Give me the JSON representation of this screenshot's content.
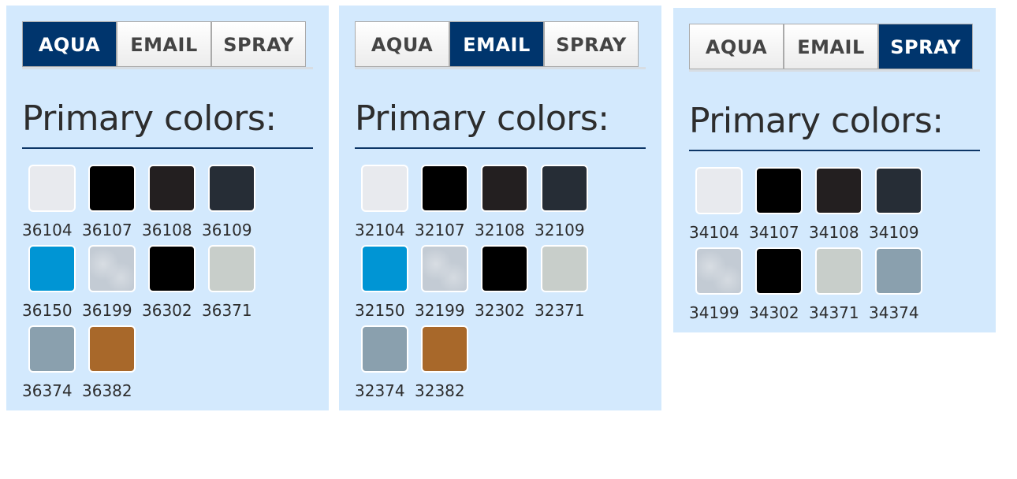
{
  "tabs": [
    "AQUA",
    "EMAIL",
    "SPRAY"
  ],
  "heading": "Primary colors:",
  "panels": [
    {
      "active_tab": "AQUA",
      "swatches": [
        {
          "code": "36104",
          "color": "#e8eaee"
        },
        {
          "code": "36107",
          "color": "#000000"
        },
        {
          "code": "36108",
          "color": "#231f20"
        },
        {
          "code": "36109",
          "color": "#262d36"
        },
        {
          "code": "36150",
          "color": "#0095d4"
        },
        {
          "code": "36199",
          "color": "#c3cbd4"
        },
        {
          "code": "36302",
          "color": "#000000"
        },
        {
          "code": "36371",
          "color": "#c8ceca"
        },
        {
          "code": "36374",
          "color": "#8aa0ae"
        },
        {
          "code": "36382",
          "color": "#a8682a"
        }
      ]
    },
    {
      "active_tab": "EMAIL",
      "swatches": [
        {
          "code": "32104",
          "color": "#e8eaee"
        },
        {
          "code": "32107",
          "color": "#000000"
        },
        {
          "code": "32108",
          "color": "#231f20"
        },
        {
          "code": "32109",
          "color": "#262d36"
        },
        {
          "code": "32150",
          "color": "#0095d4"
        },
        {
          "code": "32199",
          "color": "#c3cbd4"
        },
        {
          "code": "32302",
          "color": "#000000"
        },
        {
          "code": "32371",
          "color": "#c8ceca"
        },
        {
          "code": "32374",
          "color": "#8aa0ae"
        },
        {
          "code": "32382",
          "color": "#a8682a"
        }
      ]
    },
    {
      "active_tab": "SPRAY",
      "swatches": [
        {
          "code": "34104",
          "color": "#e8eaee"
        },
        {
          "code": "34107",
          "color": "#000000"
        },
        {
          "code": "34108",
          "color": "#231f20"
        },
        {
          "code": "34109",
          "color": "#262d36"
        },
        {
          "code": "34199",
          "color": "#c3cbd4"
        },
        {
          "code": "34302",
          "color": "#000000"
        },
        {
          "code": "34371",
          "color": "#c8ceca"
        },
        {
          "code": "34374",
          "color": "#8aa0ae"
        }
      ]
    }
  ],
  "colors": {
    "panel_bg": "#d3e9fd",
    "active_tab": "#00356d",
    "rule": "#0d3667"
  }
}
